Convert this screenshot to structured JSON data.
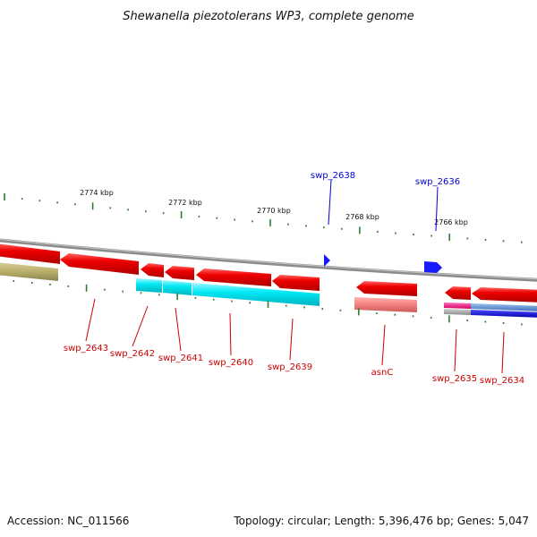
{
  "title": "Shewanella piezotolerans WP3, complete genome",
  "footer": {
    "accession": "Accession: NC_011566",
    "summary": "Topology: circular; Length: 5,396,476 bp; Genes: 5,047"
  },
  "colors": {
    "backbone": "#8c8c8c",
    "ticks": "#2e7d32",
    "cds": "#e8000e",
    "cds_dark": "#b40000",
    "gene_label_red": "#cc0000",
    "gene_label_blue": "#0000cc",
    "trna_blue": "#1a1aff",
    "cyan": "#00e5f2",
    "pink": "#f08080",
    "olive": "#b8ae6a",
    "magenta": "#ff1a90",
    "steel": "#5b8ed6",
    "navy": "#0000dd",
    "grey_feature": "#a8a8a8"
  },
  "kbp_labels": [
    "2774 kbp",
    "2772 kbp",
    "2770 kbp",
    "2768 kbp",
    "2766 kbp"
  ],
  "genes_top": [
    {
      "name": "swp_2638",
      "color": "#0000cc"
    },
    {
      "name": "swp_2636",
      "color": "#0000cc"
    }
  ],
  "genes_bottom": [
    {
      "name": "swp_2643",
      "color": "#cc0000"
    },
    {
      "name": "swp_2642",
      "color": "#cc0000"
    },
    {
      "name": "swp_2641",
      "color": "#cc0000"
    },
    {
      "name": "swp_2640",
      "color": "#cc0000"
    },
    {
      "name": "swp_2639",
      "color": "#cc0000"
    },
    {
      "name": "asnC",
      "color": "#cc0000"
    },
    {
      "name": "swp_2635",
      "color": "#cc0000"
    },
    {
      "name": "swp_2634",
      "color": "#cc0000"
    }
  ]
}
